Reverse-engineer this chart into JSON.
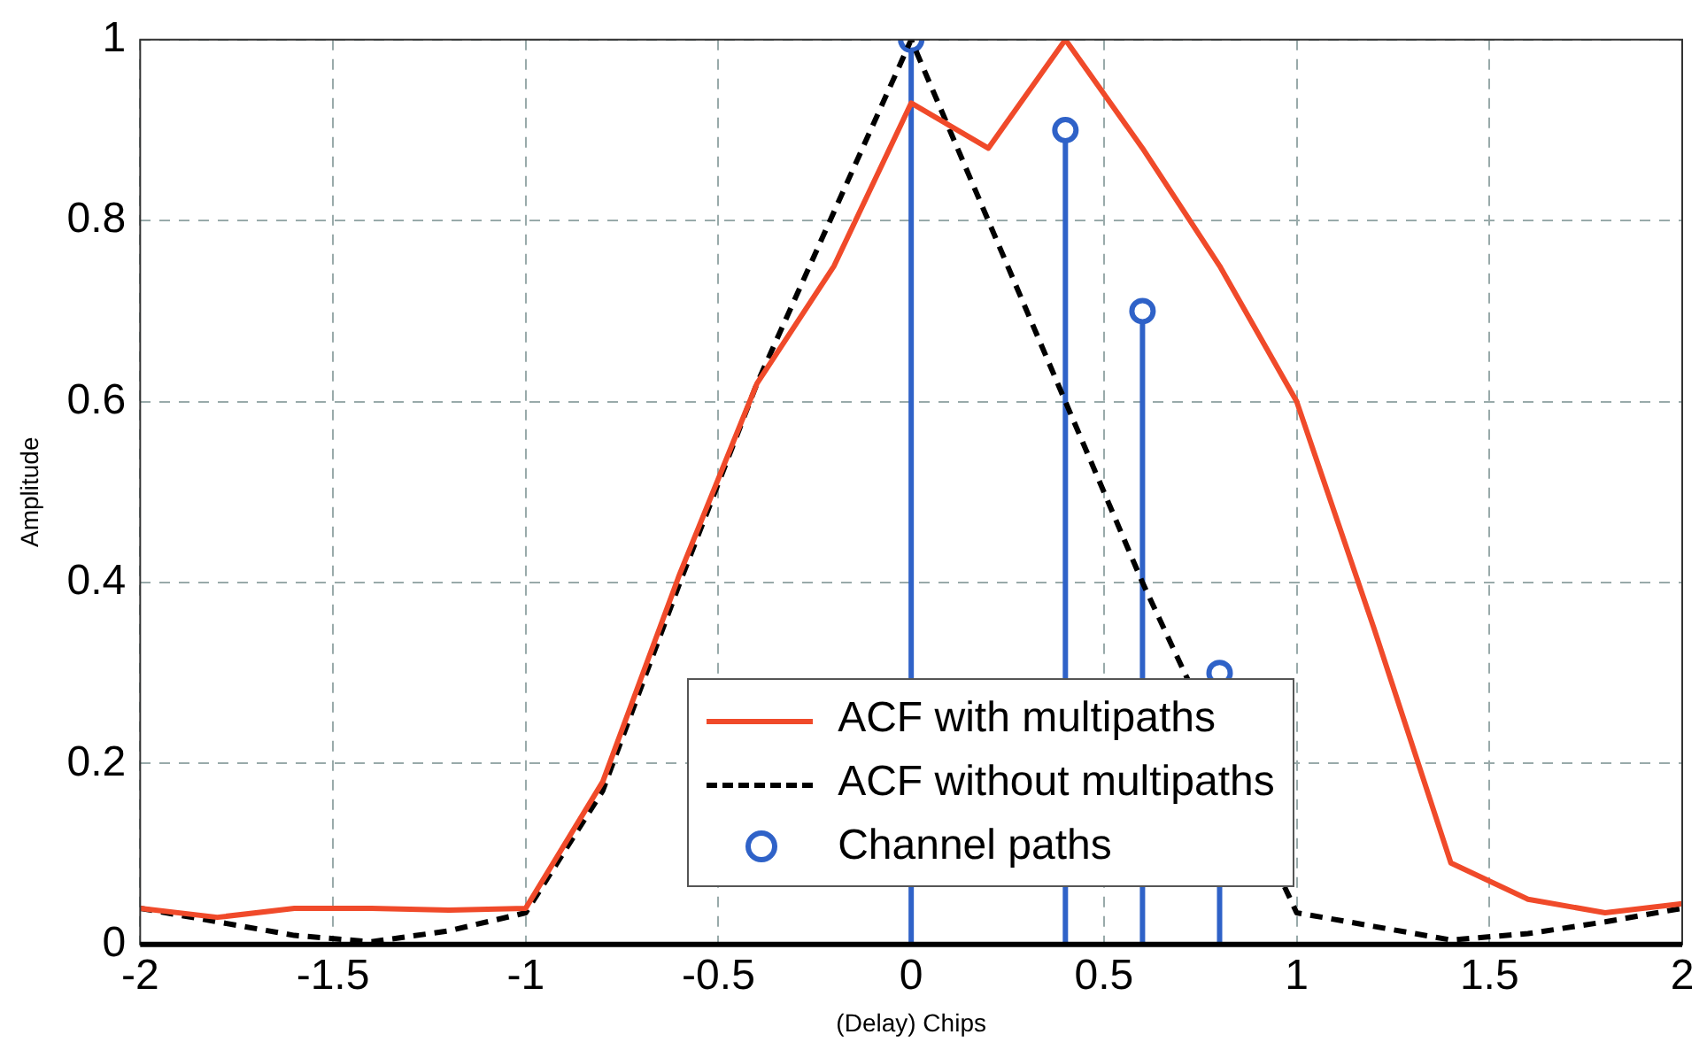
{
  "chart_data": {
    "type": "line",
    "xlabel": "(Delay) Chips",
    "ylabel": "Amplitude",
    "xlim": [
      -2,
      2
    ],
    "ylim": [
      0,
      1
    ],
    "xticks": [
      -2,
      -1.5,
      -1,
      -0.5,
      0,
      0.5,
      1,
      1.5,
      2
    ],
    "yticks": [
      0,
      0.2,
      0.4,
      0.6,
      0.8,
      1
    ],
    "grid": true,
    "legend": "bottom",
    "series": [
      {
        "name": "ACF with multipaths",
        "color": "#f04a2a",
        "line_style": "solid",
        "marker": "none",
        "x": [
          -2,
          -1.8,
          -1.6,
          -1.4,
          -1.2,
          -1,
          -0.8,
          -0.6,
          -0.4,
          -0.2,
          0,
          0.2,
          0.4,
          0.6,
          0.8,
          1,
          1.2,
          1.4,
          1.6,
          1.8,
          2
        ],
        "values": [
          0.04,
          0.03,
          0.04,
          0.04,
          0.038,
          0.04,
          0.18,
          0.41,
          0.62,
          0.75,
          0.93,
          0.88,
          1.0,
          0.88,
          0.75,
          0.6,
          0.35,
          0.09,
          0.05,
          0.035,
          0.045
        ]
      },
      {
        "name": "ACF without multipaths",
        "color": "#000000",
        "line_style": "dashed",
        "marker": "none",
        "x": [
          -2,
          -1.8,
          -1.6,
          -1.4,
          -1.2,
          -1,
          -0.8,
          -0.6,
          -0.4,
          -0.2,
          0,
          0.2,
          0.4,
          0.6,
          1,
          1.2,
          1.4,
          1.6,
          1.8,
          2
        ],
        "values": [
          0.04,
          0.025,
          0.01,
          0.003,
          0.015,
          0.035,
          0.17,
          0.4,
          0.62,
          0.81,
          1.0,
          0.8,
          0.6,
          0.4,
          0.035,
          0.02,
          0.005,
          0.012,
          0.025,
          0.04
        ]
      },
      {
        "name": "Channel paths",
        "type": "lollipop",
        "color": "#2f62c8",
        "marker": "circle",
        "x": [
          0,
          0.4,
          0.6,
          0.8
        ],
        "values": [
          1.0,
          0.9,
          0.7,
          0.3
        ]
      }
    ]
  }
}
